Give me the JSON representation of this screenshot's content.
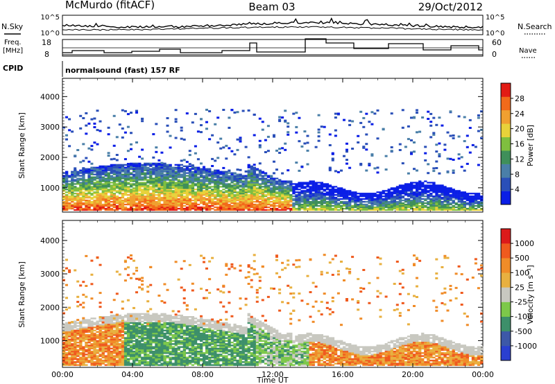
{
  "header": {
    "radar_title": "McMurdo (fitACF)",
    "beam": "Beam 03",
    "date": "29/Oct/2012"
  },
  "noise_panel": {
    "left_label": "N.Sky",
    "right_label": "N.Search",
    "left_ticks": [
      "10^5",
      "10^0"
    ],
    "right_ticks": [
      "10^5",
      "10^0"
    ]
  },
  "freq_panel": {
    "left_label_1": "Freq.",
    "left_label_2": "[MHz]",
    "left_ticks": [
      "18",
      "8"
    ],
    "right_label": "Nave",
    "right_ticks": [
      "60",
      "0"
    ]
  },
  "cpid_panel": {
    "label": "CPID",
    "text": "normalsound (fast) 157 RF"
  },
  "colors": {
    "power_scale": [
      "#0a1ee6",
      "#2a4fb8",
      "#4a7fa8",
      "#3f8f5a",
      "#7fbf3f",
      "#e8d23a",
      "#f0a030",
      "#f26a1a",
      "#e21b14"
    ],
    "velocity_scale": [
      "#2a3fd0",
      "#3d58a8",
      "#3d8f6a",
      "#7dc84a",
      "#c8c8c0",
      "#e8b040",
      "#f08c28",
      "#ef5a1e",
      "#dc1a1a"
    ]
  },
  "chart_data": [
    {
      "type": "heatmap",
      "name": "power",
      "ylabel": "Slant Range [km]",
      "xlabel": "",
      "x_ticks": [
        "00:00",
        "04:00",
        "08:00",
        "12:00",
        "16:00",
        "20:00",
        "00:00"
      ],
      "y_ticks": [
        "1000",
        "2000",
        "3000",
        "4000"
      ],
      "ylim": [
        200,
        4600
      ],
      "colorbar_label": "Power [dB]",
      "colorbar_ticks": [
        "28",
        "24",
        "20",
        "16",
        "12",
        "8",
        "4"
      ]
    },
    {
      "type": "heatmap",
      "name": "velocity",
      "ylabel": "Slant Range [km]",
      "xlabel": "Time UT",
      "x_ticks": [
        "00:00",
        "04:00",
        "08:00",
        "12:00",
        "16:00",
        "20:00",
        "00:00"
      ],
      "y_ticks": [
        "1000",
        "2000",
        "3000",
        "4000"
      ],
      "ylim": [
        200,
        4600
      ],
      "colorbar_label": "Velocity [m s⁻¹]",
      "colorbar_ticks": [
        "1000",
        "500",
        "100",
        "25",
        "-25",
        "-100",
        "-500",
        "-1000"
      ]
    }
  ]
}
